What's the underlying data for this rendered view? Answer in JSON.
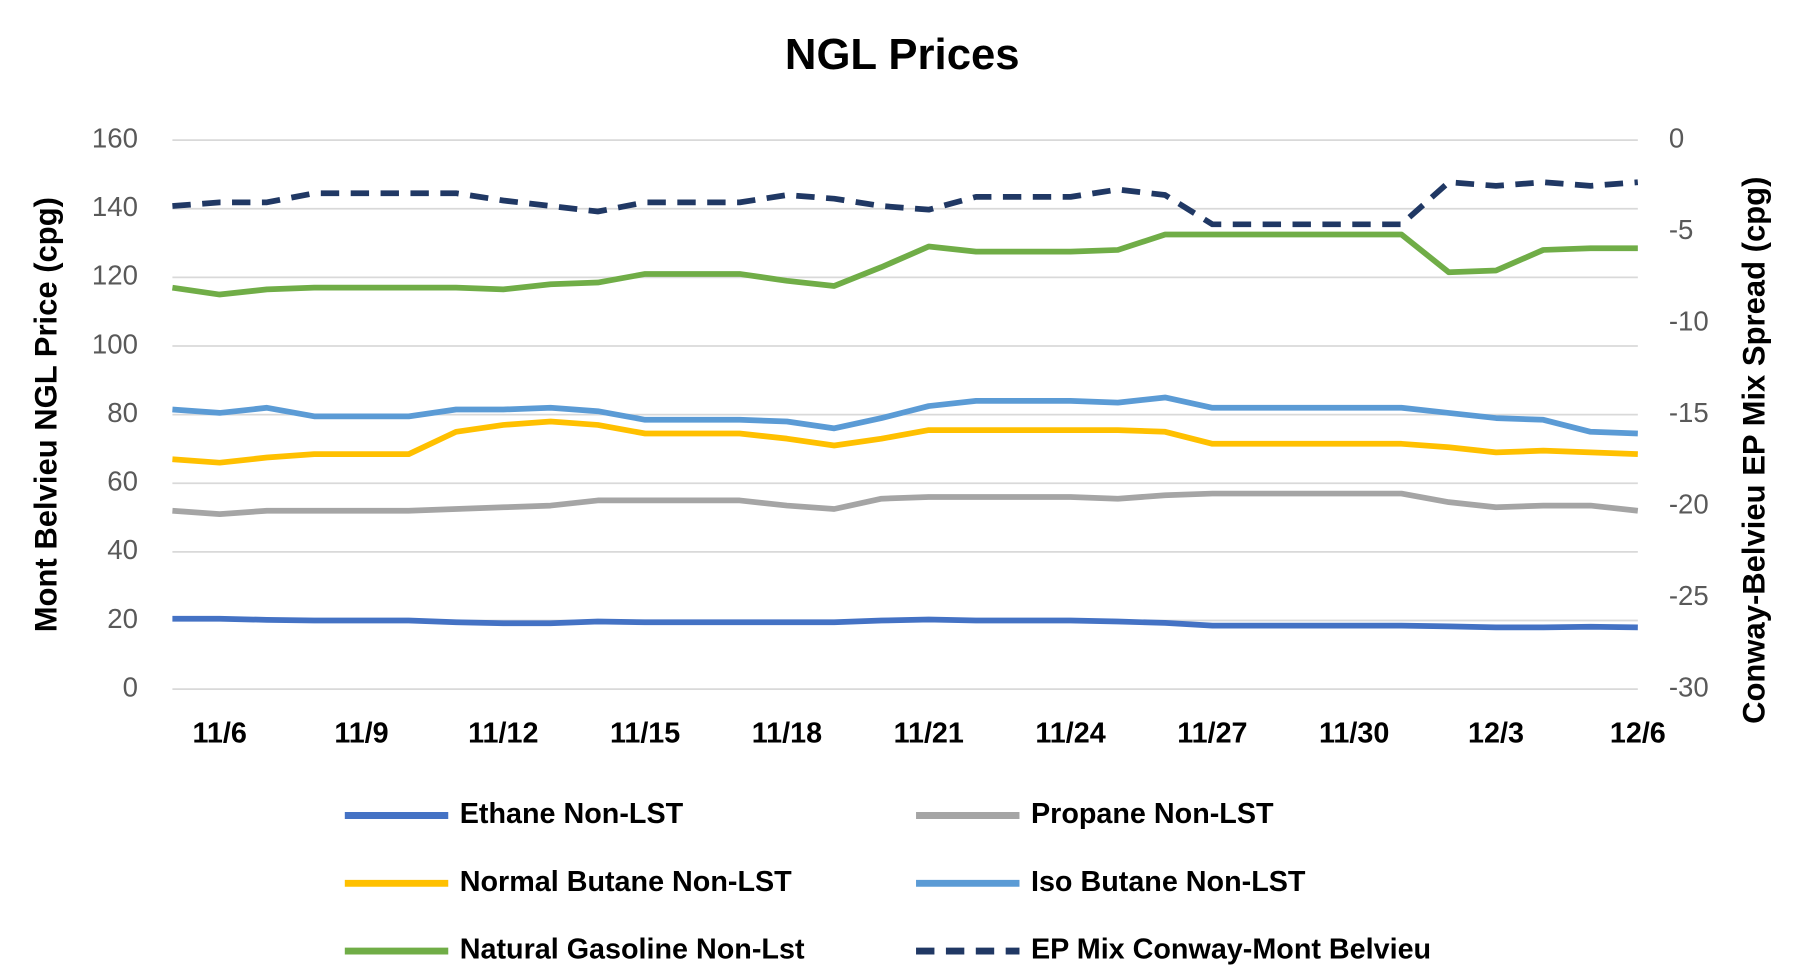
{
  "chart_data": {
    "type": "line",
    "title": "NGL Prices",
    "y_label": "Mont Belvieu NGL Price (cpg)",
    "y2_label": "Conway-Belvieu EP Mix Spread (cpg)",
    "categories": [
      null,
      "11/6",
      null,
      null,
      "11/9",
      null,
      null,
      "11/12",
      null,
      null,
      "11/15",
      null,
      null,
      "11/18",
      null,
      null,
      "11/21",
      null,
      null,
      "11/24",
      null,
      null,
      "11/27",
      null,
      null,
      "11/30",
      null,
      null,
      "12/3",
      null,
      null,
      "12/6"
    ],
    "ylim": [
      0,
      160
    ],
    "yticks": [
      0,
      20,
      40,
      60,
      80,
      100,
      120,
      140,
      160
    ],
    "y2lim": [
      -30,
      0
    ],
    "y2ticks": [
      -30,
      -25,
      -20,
      -15,
      -10,
      -5,
      0
    ],
    "grid": true,
    "series": [
      {
        "name": "Ethane Non-LST",
        "color": "#4472c4",
        "values": [
          20.5,
          20.5,
          20.2,
          20,
          20,
          20,
          19.5,
          19.2,
          19.2,
          19.7,
          19.5,
          19.5,
          19.5,
          19.5,
          19.5,
          20,
          20.3,
          20,
          20,
          20,
          19.7,
          19.3,
          18.5,
          18.5,
          18.5,
          18.5,
          18.5,
          18.3,
          18,
          18,
          18.2,
          18
        ]
      },
      {
        "name": "Propane Non-LST",
        "color": "#a5a5a5",
        "values": [
          52,
          51,
          52,
          52,
          52,
          52,
          52.5,
          53,
          53.5,
          55,
          55,
          55,
          55,
          53.5,
          52.5,
          55.5,
          56,
          56,
          56,
          56,
          55.5,
          56.5,
          57,
          57,
          57,
          57,
          57,
          54.5,
          53,
          53.5,
          53.5,
          52
        ]
      },
      {
        "name": "Normal Butane Non-LST",
        "color": "#ffc000",
        "values": [
          67,
          66,
          67.5,
          68.5,
          68.5,
          68.5,
          75,
          77,
          78,
          77,
          74.5,
          74.5,
          74.5,
          73,
          71,
          73,
          75.5,
          75.5,
          75.5,
          75.5,
          75.5,
          75,
          71.5,
          71.5,
          71.5,
          71.5,
          71.5,
          70.5,
          69,
          69.5,
          69,
          68.5
        ]
      },
      {
        "name": "Iso Butane Non-LST",
        "color": "#5b9bd5",
        "values": [
          81.5,
          80.5,
          82,
          79.5,
          79.5,
          79.5,
          81.5,
          81.5,
          82,
          81,
          78.5,
          78.5,
          78.5,
          78,
          76,
          79,
          82.5,
          84,
          84,
          84,
          83.5,
          85,
          82,
          82,
          82,
          82,
          82,
          80.5,
          79,
          78.5,
          75,
          74.5
        ]
      },
      {
        "name": "Natural Gasoline Non-Lst",
        "color": "#70ad47",
        "values": [
          117,
          115,
          116.5,
          117,
          117,
          117,
          117,
          116.5,
          118,
          118.5,
          121,
          121,
          121,
          119,
          117.5,
          123,
          129,
          127.5,
          127.5,
          127.5,
          128,
          132.5,
          132.5,
          132.5,
          132.5,
          132.5,
          132.5,
          121.5,
          122,
          128,
          128.5,
          128.5
        ]
      },
      {
        "name": "EP Mix Conway-Mont Belvieu",
        "color": "#203864",
        "dashed": true,
        "axis": "y2",
        "values": [
          -3.6,
          -3.4,
          -3.4,
          -2.9,
          -2.9,
          -2.9,
          -2.9,
          -3.3,
          -3.6,
          -3.9,
          -3.4,
          -3.4,
          -3.4,
          -3.0,
          -3.2,
          -3.6,
          -3.8,
          -3.1,
          -3.1,
          -3.1,
          -2.7,
          -3.0,
          -4.6,
          -4.6,
          -4.6,
          -4.6,
          -4.6,
          -2.3,
          -2.5,
          -2.3,
          -2.5,
          -2.3
        ]
      }
    ]
  }
}
